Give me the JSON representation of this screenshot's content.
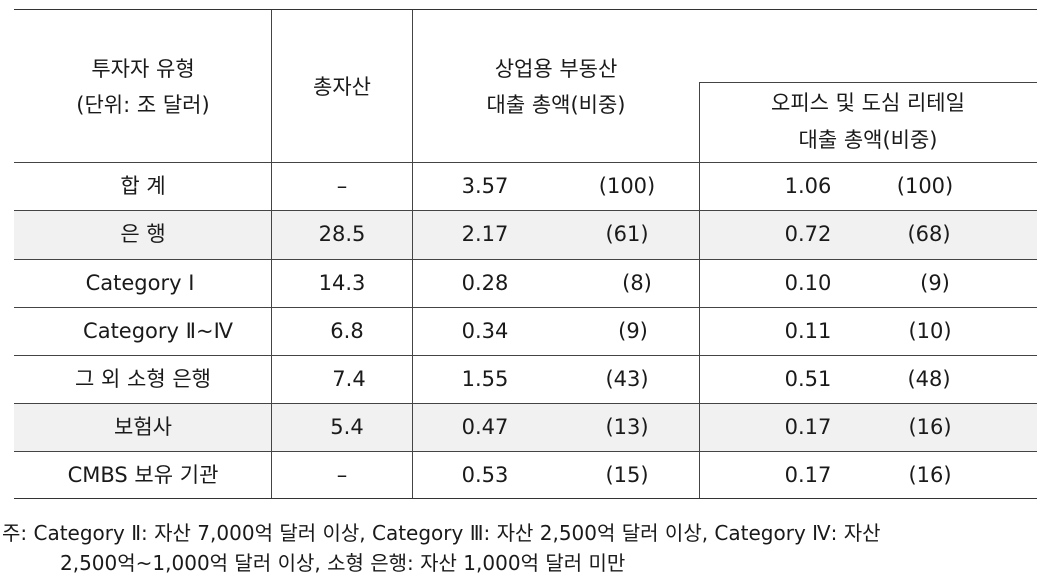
{
  "table": {
    "header": {
      "investor_type_line1": "투자자 유형",
      "investor_type_line2": "(단위: 조 달러)",
      "total_assets": "총자산",
      "cre_loans_line1": "상업용 부동산",
      "cre_loans_line2": "대출 총액(비중)",
      "office_retail_line1": "오피스 및 도심 리테일",
      "office_retail_line2": "대출 총액(비중)"
    },
    "rows": [
      {
        "type": "합 계",
        "assets": "–",
        "cre": "3.57",
        "cre_share": "(100)",
        "office": "1.06",
        "office_share": "(100)"
      },
      {
        "type": "은 행",
        "assets": "28.5",
        "cre": "2.17",
        "cre_share": "(61)",
        "office": "0.72",
        "office_share": "(68)"
      },
      {
        "type": "Category Ⅰ",
        "assets": "14.3",
        "cre": "0.28",
        "cre_share": "(8)",
        "office": "0.10",
        "office_share": "(9)"
      },
      {
        "type": "Category Ⅱ~Ⅳ",
        "assets": "6.8",
        "cre": "0.34",
        "cre_share": "(9)",
        "office": "0.11",
        "office_share": "(10)"
      },
      {
        "type": "그 외 소형 은행",
        "assets": "7.4",
        "cre": "1.55",
        "cre_share": "(43)",
        "office": "0.51",
        "office_share": "(48)"
      },
      {
        "type": "보험사",
        "assets": "5.4",
        "cre": "0.47",
        "cre_share": "(13)",
        "office": "0.17",
        "office_share": "(16)"
      },
      {
        "type": "CMBS 보유 기관",
        "assets": "–",
        "cre": "0.53",
        "cre_share": "(15)",
        "office": "0.17",
        "office_share": "(16)"
      }
    ]
  },
  "footnote": {
    "line1": "주: Category Ⅱ: 자산 7,000억 달러 이상, Category Ⅲ: 자산 2,500억 달러 이상, Category Ⅳ: 자산",
    "line2": "2,500억~1,000억 달러 이상, 소형 은행: 자산 1,000억 달러 미만"
  }
}
